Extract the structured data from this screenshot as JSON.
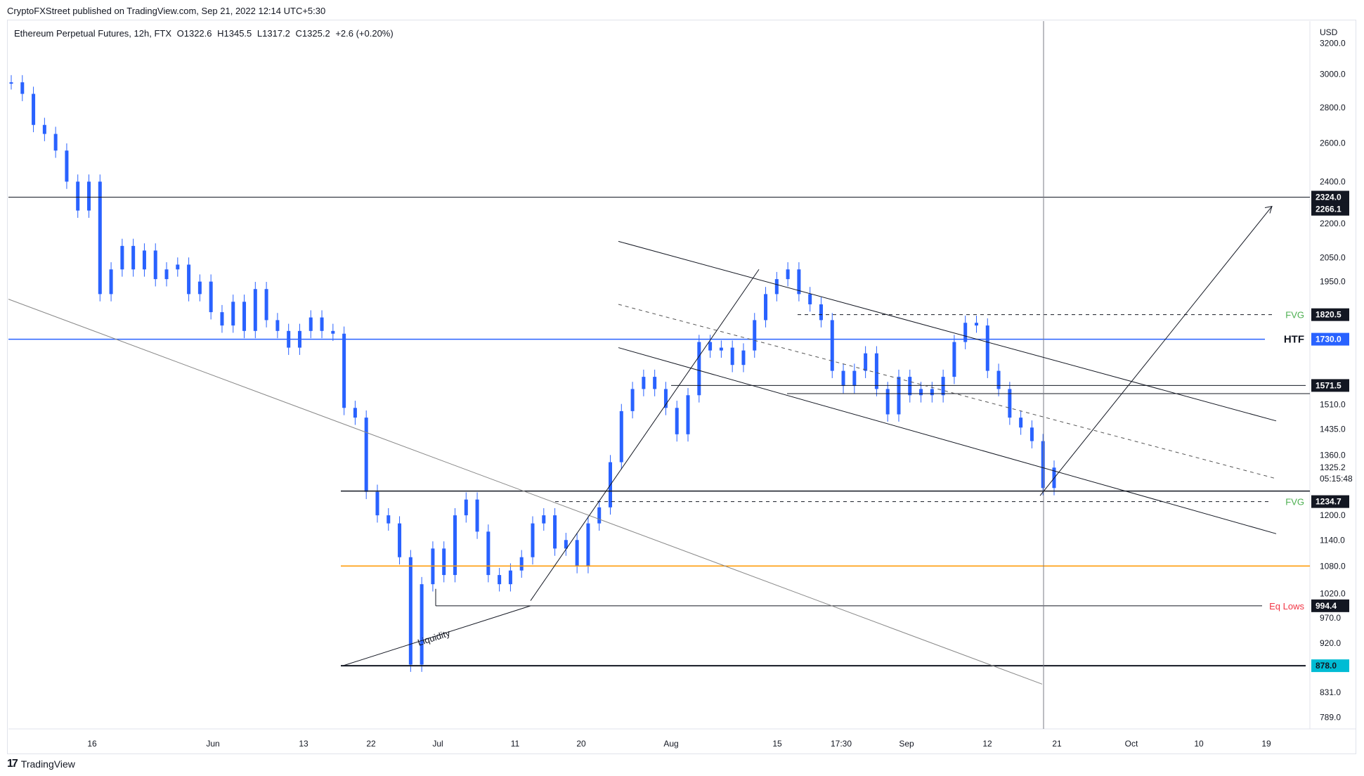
{
  "publisher_line": "CryptoFXStreet published on TradingView.com, Sep 21, 2022 12:14 UTC+5:30",
  "header": {
    "symbol": "Ethereum Perpetual Futures, 12h, FTX",
    "open": "O1322.6",
    "high": "H1345.5",
    "low": "L1317.2",
    "close": "C1325.2",
    "change": "+2.6 (+0.20%)"
  },
  "footer": {
    "brand": "TradingView"
  },
  "colors": {
    "candle": "#2962ff",
    "htf_line": "#2962ff",
    "orange_line": "#ff9800",
    "fvg_text": "#4caf50",
    "eq_lows_text": "#f23645",
    "last_price_bg": "#ffffff",
    "low_label_bg": "#00bcd4"
  },
  "chart_data": {
    "type": "line",
    "title": "",
    "currency": "USD",
    "y_scale": "log",
    "ylim": [
      770,
      3350
    ],
    "y_ticks": [
      3200.0,
      3000.0,
      2800.0,
      2600.0,
      2400.0,
      2200.0,
      2050.0,
      1950.0,
      1510.0,
      1435.0,
      1360.0,
      1200.0,
      1140.0,
      1080.0,
      1020.0,
      970.0,
      920.0,
      831.0,
      789.0
    ],
    "x_ticks": [
      "16",
      "Jun",
      "13",
      "22",
      "Jul",
      "11",
      "20",
      "Aug",
      "15",
      "17:30",
      "Sep",
      "12",
      "21",
      "Oct",
      "10",
      "19"
    ],
    "series": [
      {
        "values": [
          2950,
          2880,
          2700,
          2650,
          2560,
          2400,
          2260,
          2400,
          1900,
          2000,
          2100,
          2000,
          2080,
          1960,
          2000,
          2020,
          1900,
          1950,
          1830,
          1780,
          1870,
          1760,
          1920,
          1800,
          1760,
          1700,
          1760,
          1810,
          1760,
          1750,
          1500,
          1470,
          1260,
          1200,
          1180,
          1100,
          880,
          1040,
          1120,
          1060,
          1200,
          1240,
          1160,
          1060,
          1040,
          1070,
          1100,
          1180,
          1200,
          1120,
          1140,
          1080,
          1180,
          1220,
          1340,
          1490,
          1560,
          1600,
          1560,
          1500,
          1420,
          1540,
          1720,
          1690,
          1700,
          1640,
          1690,
          1800,
          1900,
          1960,
          2000,
          1900,
          1860,
          1800,
          1620,
          1570,
          1620,
          1680,
          1560,
          1480,
          1600,
          1540,
          1560,
          1540,
          1600,
          1720,
          1790,
          1780,
          1620,
          1560,
          1470,
          1440,
          1400,
          1270,
          1325
        ]
      }
    ],
    "horizontal_levels": [
      {
        "price": 2324.0,
        "label": "2324.0"
      },
      {
        "price": 2266.1,
        "label": "2266.1"
      },
      {
        "price": 1820.5,
        "label": "1820.5",
        "note": "FVG"
      },
      {
        "price": 1730.0,
        "label": "1730.0",
        "note": "HTF"
      },
      {
        "price": 1571.5,
        "label": "1571.5"
      },
      {
        "price": 1234.7,
        "label": "1234.7",
        "note": "FVG"
      },
      {
        "price": 994.4,
        "label": "994.4",
        "note": "Eq Lows"
      },
      {
        "price": 878.0,
        "label": "878.0"
      }
    ],
    "last_price": {
      "price": 1325.2,
      "countdown": "05:15:48"
    },
    "annotations": [
      "Liquidity"
    ]
  }
}
